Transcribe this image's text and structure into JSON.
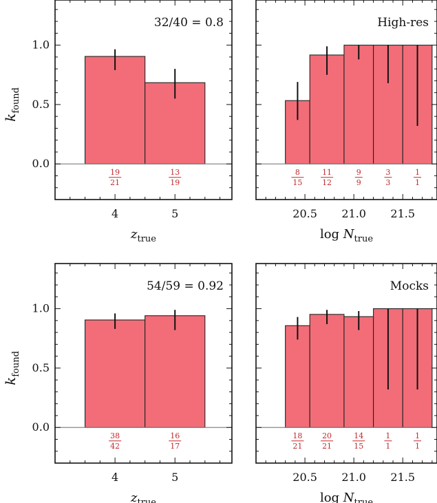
{
  "chart_data": [
    {
      "type": "bar",
      "panel": "top-left",
      "annotation": "32/40 = 0.8",
      "x_tick_labels": [
        "4",
        "5"
      ],
      "xlabel": "z_true",
      "ylabel": "k_found",
      "y_tick_labels": [
        "0.0",
        "0.5",
        "1.0"
      ],
      "ylim": [
        -0.3,
        1.38
      ],
      "bins": [
        [
          3.5,
          4.5
        ],
        [
          4.5,
          5.5
        ]
      ],
      "values": [
        0.905,
        0.684
      ],
      "errors": [
        [
          0.79,
          0.965
        ],
        [
          0.55,
          0.8
        ]
      ],
      "fractions": [
        {
          "num": "19",
          "den": "21"
        },
        {
          "num": "13",
          "den": "19"
        }
      ],
      "bar_color": "#f26d78"
    },
    {
      "type": "bar",
      "panel": "top-right",
      "annotation": "High-res",
      "x_tick_labels": [
        "20.5",
        "21.0",
        "21.5"
      ],
      "xlabel": "log N_true",
      "ylabel": "",
      "ylim": [
        -0.3,
        1.38
      ],
      "xlim": [
        20.0,
        21.85
      ],
      "bins": [
        [
          20.3,
          20.55
        ],
        [
          20.55,
          20.9
        ],
        [
          20.9,
          21.2
        ],
        [
          21.2,
          21.5
        ],
        [
          21.5,
          21.8
        ]
      ],
      "values": [
        0.533,
        0.917,
        1.0,
        1.0,
        1.0
      ],
      "errors": [
        [
          0.37,
          0.69
        ],
        [
          0.75,
          0.99
        ],
        [
          0.88,
          1.0
        ],
        [
          0.68,
          1.0
        ],
        [
          0.32,
          1.0
        ]
      ],
      "fractions": [
        {
          "num": "8",
          "den": "15"
        },
        {
          "num": "11",
          "den": "12"
        },
        {
          "num": "9",
          "den": "9"
        },
        {
          "num": "3",
          "den": "3"
        },
        {
          "num": "1",
          "den": "1"
        }
      ],
      "bar_color": "#f26d78"
    },
    {
      "type": "bar",
      "panel": "bottom-left",
      "annotation": "54/59 = 0.92",
      "x_tick_labels": [
        "4",
        "5"
      ],
      "xlabel": "z_true",
      "ylabel": "k_found",
      "y_tick_labels": [
        "0.0",
        "0.5",
        "1.0"
      ],
      "ylim": [
        -0.3,
        1.38
      ],
      "bins": [
        [
          3.5,
          4.5
        ],
        [
          4.5,
          5.5
        ]
      ],
      "values": [
        0.905,
        0.941
      ],
      "errors": [
        [
          0.83,
          0.96
        ],
        [
          0.82,
          0.99
        ]
      ],
      "fractions": [
        {
          "num": "38",
          "den": "42"
        },
        {
          "num": "16",
          "den": "17"
        }
      ],
      "bar_color": "#f26d78"
    },
    {
      "type": "bar",
      "panel": "bottom-right",
      "annotation": "Mocks",
      "x_tick_labels": [
        "20.5",
        "21.0",
        "21.5"
      ],
      "xlabel": "log N_true",
      "ylabel": "",
      "ylim": [
        -0.3,
        1.38
      ],
      "xlim": [
        20.0,
        21.85
      ],
      "bins": [
        [
          20.3,
          20.55
        ],
        [
          20.55,
          20.9
        ],
        [
          20.9,
          21.2
        ],
        [
          21.2,
          21.5
        ],
        [
          21.5,
          21.8
        ]
      ],
      "values": [
        0.857,
        0.952,
        0.933,
        1.0,
        1.0
      ],
      "errors": [
        [
          0.74,
          0.93
        ],
        [
          0.87,
          0.99
        ],
        [
          0.82,
          0.98
        ],
        [
          0.32,
          1.0
        ],
        [
          0.32,
          1.0
        ]
      ],
      "fractions": [
        {
          "num": "18",
          "den": "21"
        },
        {
          "num": "20",
          "den": "21"
        },
        {
          "num": "14",
          "den": "15"
        },
        {
          "num": "1",
          "den": "1"
        },
        {
          "num": "1",
          "den": "1"
        }
      ],
      "bar_color": "#f26d78"
    }
  ]
}
